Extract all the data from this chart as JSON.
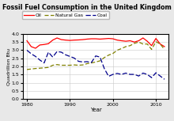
{
  "title": "Fossil Fuel Consumption in the United Kingdom",
  "xlabel": "Year",
  "ylabel": "Quadrillion Btu",
  "ylim": [
    0.0,
    4.0
  ],
  "yticks": [
    0.0,
    0.5,
    1.0,
    1.5,
    2.0,
    2.5,
    3.0,
    3.5,
    4.0
  ],
  "xlim": [
    1979,
    2013
  ],
  "xticks": [
    1980,
    1990,
    2000,
    2010
  ],
  "oil_color": "#ff0000",
  "gas_color": "#808000",
  "coal_color": "#00008b",
  "years": [
    1980,
    1981,
    1982,
    1983,
    1984,
    1985,
    1986,
    1987,
    1988,
    1989,
    1990,
    1991,
    1992,
    1993,
    1994,
    1995,
    1996,
    1997,
    1998,
    1999,
    2000,
    2001,
    2002,
    2003,
    2004,
    2005,
    2006,
    2007,
    2008,
    2009,
    2010,
    2011,
    2012
  ],
  "oil": [
    3.58,
    3.22,
    3.12,
    3.32,
    3.35,
    3.4,
    3.62,
    3.75,
    3.65,
    3.62,
    3.6,
    3.62,
    3.63,
    3.65,
    3.68,
    3.7,
    3.7,
    3.68,
    3.7,
    3.72,
    3.7,
    3.62,
    3.58,
    3.55,
    3.58,
    3.5,
    3.58,
    3.75,
    3.55,
    3.28,
    3.72,
    3.38,
    3.22
  ],
  "natural_gas": [
    1.82,
    1.85,
    1.88,
    1.9,
    1.92,
    1.95,
    2.08,
    2.12,
    2.08,
    2.08,
    2.08,
    2.1,
    2.08,
    2.1,
    2.18,
    2.22,
    2.28,
    2.35,
    2.55,
    2.7,
    2.8,
    3.0,
    3.1,
    3.22,
    3.28,
    3.42,
    3.5,
    3.38,
    3.38,
    3.05,
    3.52,
    3.38,
    3.05
  ],
  "coal": [
    3.0,
    2.78,
    2.62,
    2.4,
    2.22,
    2.88,
    2.58,
    2.92,
    2.88,
    2.72,
    2.62,
    2.52,
    2.32,
    2.28,
    2.3,
    2.25,
    2.65,
    2.58,
    1.88,
    1.4,
    1.52,
    1.58,
    1.52,
    1.6,
    1.52,
    1.52,
    1.42,
    1.6,
    1.52,
    1.32,
    1.62,
    1.42,
    1.22
  ]
}
